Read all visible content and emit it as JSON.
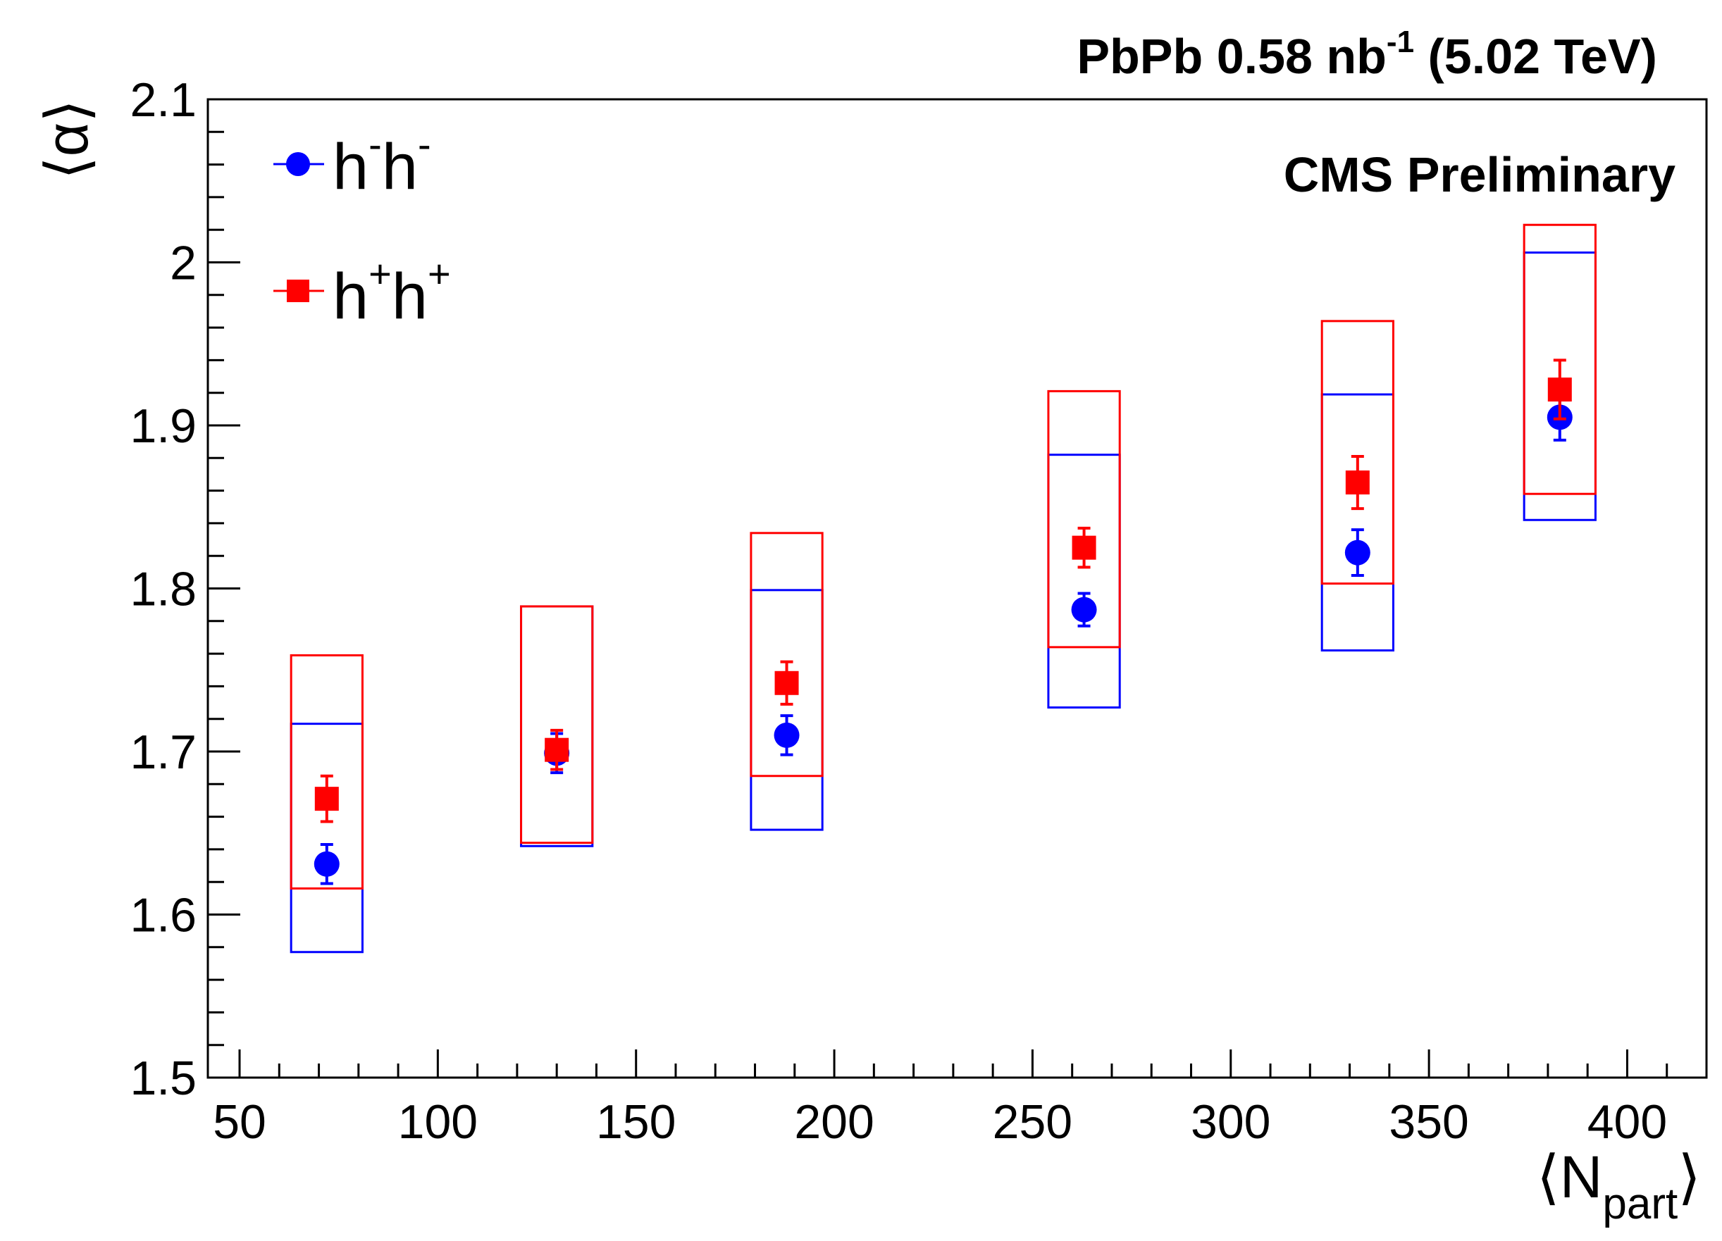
{
  "chart_data": {
    "type": "scatter",
    "title": "PbPb 0.58 nb-1 (5.02 TeV)",
    "title_parts": {
      "main": "PbPb 0.58 nb",
      "sup": "-1",
      "tail": " (5.02 TeV)"
    },
    "annotation": "CMS Preliminary",
    "xlabel": {
      "open": "⟨",
      "main": "N",
      "sub": "part",
      "close": "⟩"
    },
    "ylabel": "⟨α⟩",
    "xlim": [
      42,
      420
    ],
    "ylim": [
      1.5,
      2.1
    ],
    "x_ticks": [
      50,
      100,
      150,
      200,
      250,
      300,
      350,
      400
    ],
    "x_tick_labels": [
      "50",
      "100",
      "150",
      "200",
      "250",
      "300",
      "350",
      "400"
    ],
    "y_ticks": [
      1.5,
      1.6,
      1.7,
      1.8,
      1.9,
      2.0,
      2.1
    ],
    "y_tick_labels": [
      "1.5",
      "1.6",
      "1.7",
      "1.8",
      "1.9",
      "2",
      "2.1"
    ],
    "legend_position": "top-left",
    "series": [
      {
        "name": "h-h-",
        "label_parts": [
          "h",
          "-",
          "h",
          "-"
        ],
        "color": "#0000ff",
        "marker": "circle",
        "x": [
          72,
          130,
          188,
          263,
          332,
          383
        ],
        "y": [
          1.631,
          1.699,
          1.71,
          1.787,
          1.822,
          1.905
        ],
        "stat_err": [
          0.012,
          0.012,
          0.012,
          0.01,
          0.014,
          0.014
        ],
        "sys_low": [
          1.577,
          1.642,
          1.652,
          1.727,
          1.762,
          1.842
        ],
        "sys_high": [
          1.717,
          1.789,
          1.799,
          1.882,
          1.919,
          2.006
        ]
      },
      {
        "name": "h+h+",
        "label_parts": [
          "h",
          "+",
          "h",
          "+"
        ],
        "color": "#ff0000",
        "marker": "square",
        "x": [
          72,
          130,
          188,
          263,
          332,
          383
        ],
        "y": [
          1.671,
          1.701,
          1.742,
          1.825,
          1.865,
          1.922
        ],
        "stat_err": [
          0.014,
          0.012,
          0.013,
          0.012,
          0.016,
          0.018
        ],
        "sys_low": [
          1.616,
          1.644,
          1.685,
          1.764,
          1.803,
          1.858
        ],
        "sys_high": [
          1.759,
          1.789,
          1.834,
          1.921,
          1.964,
          2.023
        ]
      }
    ],
    "sys_box_halfwidth": 9
  }
}
